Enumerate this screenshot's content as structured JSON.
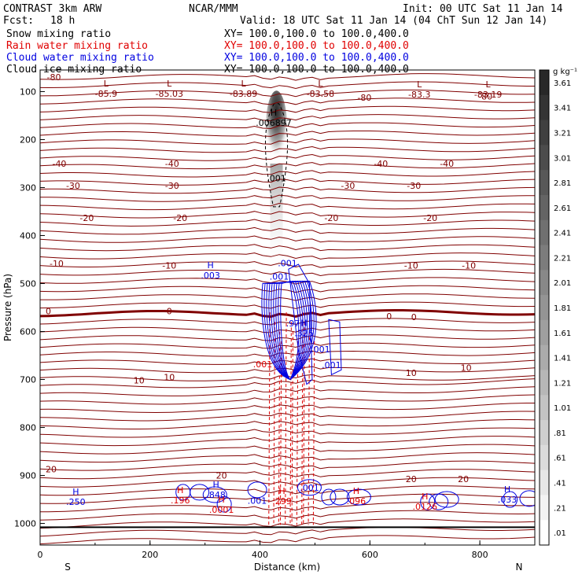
{
  "header": {
    "model": "CONTRAST  3km ARW",
    "org": "NCAR/MMM",
    "init": "Init: 00 UTC Sat 11 Jan 14",
    "fcst_label": "Fcst:",
    "fcst_value": "18 h",
    "valid": "Valid: 18 UTC Sat 11 Jan 14 (04 ChT Sun 12 Jan 14)"
  },
  "fields": [
    {
      "name": "Snow mixing ratio",
      "xy": "XY= 100.0,100.0 to 100.0,400.0",
      "color": "#000000"
    },
    {
      "name": "Rain water mixing ratio",
      "xy": "XY= 100.0,100.0 to 100.0,400.0",
      "color": "#e00000"
    },
    {
      "name": "Cloud water mixing ratio",
      "xy": "XY= 100.0,100.0 to 100.0,400.0",
      "color": "#0000e0"
    },
    {
      "name": "Cloud ice mixing ratio",
      "xy": "XY= 100.0,100.0 to 100.0,400.0",
      "color": "#000000"
    }
  ],
  "colors": {
    "temperature": "#800000",
    "rain": "#e00000",
    "cloud_water": "#0000e0"
  },
  "chart_data": {
    "type": "cross-section contour",
    "xlabel": "Distance (km)",
    "ylabel": "Pressure (hPa)",
    "xlim": [
      0,
      900
    ],
    "ylim": [
      1045,
      55
    ],
    "x_ticks": [
      "0",
      "200",
      "400",
      "600",
      "800"
    ],
    "x_tick_values": [
      0,
      200,
      400,
      600,
      800
    ],
    "y_ticks": [
      "100",
      "200",
      "300",
      "400",
      "500",
      "600",
      "700",
      "800",
      "900",
      "1000"
    ],
    "y_tick_values": [
      100,
      200,
      300,
      400,
      500,
      600,
      700,
      800,
      900,
      1000
    ],
    "direction_labels": {
      "left": "S",
      "right": "N"
    },
    "colorbar": {
      "unit": "g kg⁻¹",
      "tick_labels": [
        "3.61",
        "3.41",
        "3.21",
        "3.01",
        "2.81",
        "2.61",
        "2.41",
        "2.21",
        "2.01",
        "1.81",
        "1.61",
        "1.41",
        "1.21",
        "1.01",
        ".81",
        ".61",
        ".41",
        ".21",
        ".01"
      ]
    },
    "temperature_labels": [
      {
        "x": 25,
        "p": 70,
        "text": "-80"
      },
      {
        "x": 590,
        "p": 112,
        "text": "-80"
      },
      {
        "x": 810,
        "p": 110,
        "text": "-80"
      },
      {
        "x": 35,
        "p": 250,
        "text": "-40"
      },
      {
        "x": 240,
        "p": 250,
        "text": "-40"
      },
      {
        "x": 620,
        "p": 250,
        "text": "-40"
      },
      {
        "x": 740,
        "p": 250,
        "text": "-40"
      },
      {
        "x": 60,
        "p": 296,
        "text": "-30"
      },
      {
        "x": 240,
        "p": 296,
        "text": "-30"
      },
      {
        "x": 560,
        "p": 296,
        "text": "-30"
      },
      {
        "x": 680,
        "p": 296,
        "text": "-30"
      },
      {
        "x": 85,
        "p": 363,
        "text": "-20"
      },
      {
        "x": 255,
        "p": 363,
        "text": "-20"
      },
      {
        "x": 530,
        "p": 363,
        "text": "-20"
      },
      {
        "x": 710,
        "p": 363,
        "text": "-20"
      },
      {
        "x": 30,
        "p": 458,
        "text": "-10"
      },
      {
        "x": 235,
        "p": 462,
        "text": "-10"
      },
      {
        "x": 675,
        "p": 462,
        "text": "-10"
      },
      {
        "x": 780,
        "p": 462,
        "text": "-10"
      },
      {
        "x": 15,
        "p": 557,
        "text": "0"
      },
      {
        "x": 235,
        "p": 557,
        "text": "0"
      },
      {
        "x": 635,
        "p": 568,
        "text": "0"
      },
      {
        "x": 680,
        "p": 570,
        "text": "0"
      },
      {
        "x": 180,
        "p": 702,
        "text": "10"
      },
      {
        "x": 235,
        "p": 695,
        "text": "10"
      },
      {
        "x": 675,
        "p": 686,
        "text": "10"
      },
      {
        "x": 775,
        "p": 675,
        "text": "10"
      },
      {
        "x": 20,
        "p": 887,
        "text": "20"
      },
      {
        "x": 330,
        "p": 900,
        "text": "20"
      },
      {
        "x": 675,
        "p": 907,
        "text": "20"
      },
      {
        "x": 770,
        "p": 907,
        "text": "20"
      }
    ],
    "lows": [
      {
        "x": 120,
        "p": 96,
        "value": "-85.9"
      },
      {
        "x": 235,
        "p": 96,
        "value": "-85.03"
      },
      {
        "x": 370,
        "p": 96,
        "value": "-83.89"
      },
      {
        "x": 510,
        "p": 96,
        "value": "-83.58"
      },
      {
        "x": 690,
        "p": 98,
        "value": "-83.3"
      },
      {
        "x": 815,
        "p": 98,
        "value": "-83.19"
      }
    ],
    "highs": [
      {
        "x": 425,
        "p": 160,
        "value": ".006897",
        "color": "#000000"
      },
      {
        "x": 310,
        "p": 478,
        "value": ".003",
        "color": "#0000e0"
      },
      {
        "x": 480,
        "p": 598,
        "value": ".325",
        "color": "#0000e0"
      },
      {
        "x": 320,
        "p": 935,
        "value": ".848",
        "color": "#0000e0"
      },
      {
        "x": 65,
        "p": 950,
        "value": ".250",
        "color": "#0000e0"
      },
      {
        "x": 850,
        "p": 945,
        "value": ".033",
        "color": "#0000e0"
      },
      {
        "x": 440,
        "p": 948,
        "value": ".299",
        "color": "#e00000"
      },
      {
        "x": 330,
        "p": 966,
        "value": ".0001",
        "color": "#e00000"
      },
      {
        "x": 575,
        "p": 948,
        "value": ".096",
        "color": "#e00000"
      },
      {
        "x": 700,
        "p": 960,
        "value": ".0126",
        "color": "#e00000"
      },
      {
        "x": 255,
        "p": 947,
        "value": ".196",
        "color": "#e00000"
      }
    ],
    "cloud_water_labels": [
      {
        "x": 450,
        "p": 457,
        "text": ".001"
      },
      {
        "x": 435,
        "p": 485,
        "text": ".001"
      },
      {
        "x": 460,
        "p": 583,
        "text": ".97"
      },
      {
        "x": 510,
        "p": 637,
        "text": ".001"
      },
      {
        "x": 530,
        "p": 670,
        "text": ".001"
      },
      {
        "x": 395,
        "p": 952,
        "text": ".001"
      },
      {
        "x": 490,
        "p": 925,
        "text": ".001"
      }
    ],
    "rain_labels": [
      {
        "x": 405,
        "p": 668,
        "text": ".001"
      }
    ],
    "snow_labels": [
      {
        "x": 430,
        "p": 280,
        "text": ".001"
      }
    ],
    "temperature_isotherms_C": [
      -80,
      -40,
      -30,
      -20,
      -10,
      0,
      10,
      20
    ],
    "plume": {
      "x_center": 430,
      "p_top": 125,
      "p_bottom": 470,
      "max": 3.61
    }
  }
}
